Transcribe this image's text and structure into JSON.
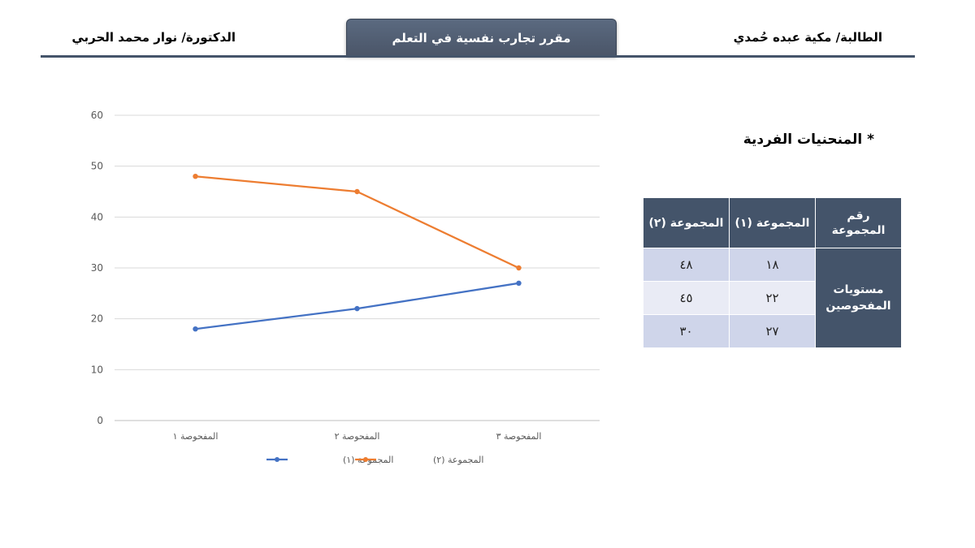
{
  "header": {
    "student": "الطالبة/ مكية عبده حُمدي",
    "course": "مقرر تجارب نفسية في التعلم",
    "doctor": "الدكتورة/ نوار محمد الحربي",
    "accent": "#44546a"
  },
  "section_title": "* المنحنيات الفردية",
  "table": {
    "headers": [
      "رقم المجموعة",
      "المجموعة (١)",
      "المجموعة (٢)"
    ],
    "row_label": "مستويات المفحوصين",
    "rows": [
      [
        "١٨",
        "٤٨"
      ],
      [
        "٢٢",
        "٤٥"
      ],
      [
        "٢٧",
        "٣٠"
      ]
    ],
    "colors": {
      "header": "#44546a",
      "row_dark": "#cfd5ea",
      "row_light": "#e9ebf5"
    }
  },
  "chart_data": {
    "type": "line",
    "title": "",
    "xlabel": "",
    "ylabel": "",
    "categories": [
      "المفحوصة ١",
      "المفحوصة ٢",
      "المفحوصة ٣"
    ],
    "series": [
      {
        "name": "المجموعة (١)",
        "values": [
          18,
          22,
          27
        ],
        "color": "#4472c4"
      },
      {
        "name": "المجموعة (٢)",
        "values": [
          48,
          45,
          30
        ],
        "color": "#ed7d31"
      }
    ],
    "ylim": [
      0,
      60
    ],
    "yticks": [
      0,
      10,
      20,
      30,
      40,
      50,
      60
    ],
    "grid": true,
    "legend": "bottom"
  }
}
